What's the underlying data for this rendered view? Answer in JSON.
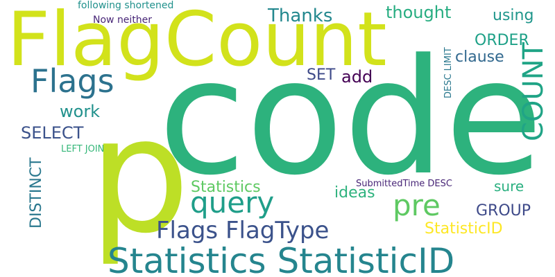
{
  "words": {
    "code": "code",
    "flagcount": "FlagCount",
    "p": "p",
    "statistics_statisticid": "Statistics StatisticID",
    "flags": "Flags",
    "query": "query",
    "pre": "pre",
    "flags_flagtype": "Flags FlagType",
    "count": "COUNT",
    "thanks": "Thanks",
    "thought": "thought",
    "using": "using",
    "order": "ORDER",
    "clause": "clause",
    "add": "add",
    "set": "SET",
    "work": "work",
    "select": "SELECT",
    "distinct": "DISTINCT",
    "left_join": "LEFT JOIN",
    "statistics": "Statistics",
    "ideas": "ideas",
    "sure": "sure",
    "submittedtime_desc": "SubmittedTime DESC",
    "group": "GROUP",
    "statisticid": "StatisticID",
    "desc_limit": "DESC LIMIT",
    "following_shortened": "following shortened",
    "now_neither": "Now neither"
  }
}
